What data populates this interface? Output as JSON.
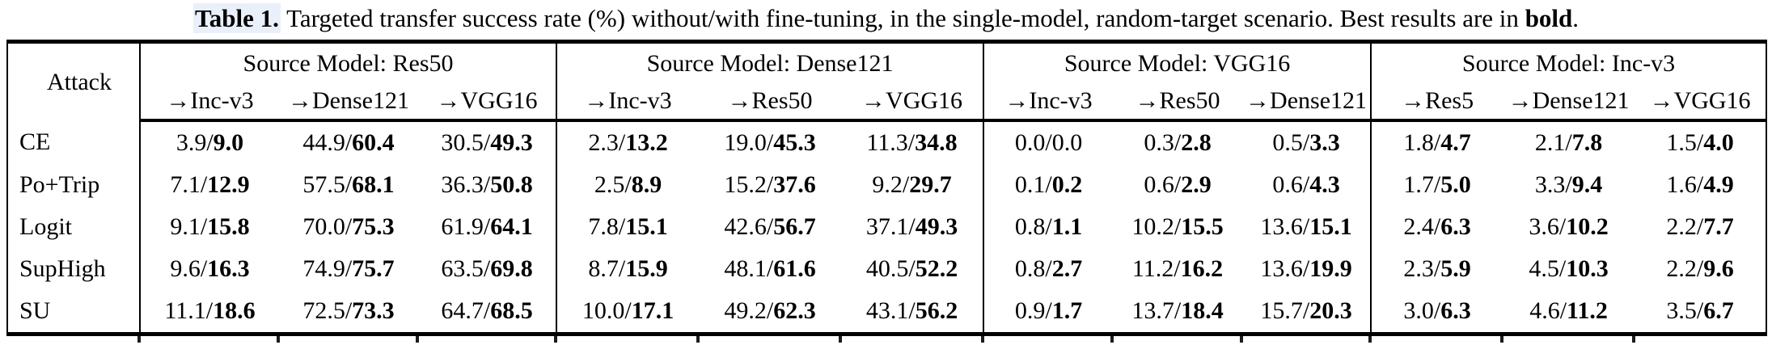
{
  "caption": {
    "label": "Table 1.",
    "body": " Targeted transfer success rate (%) without/with fine-tuning, in the single-model, random-target scenario. Best results are in ",
    "bold_word": "bold",
    "suffix": "."
  },
  "table": {
    "attack_header": "Attack",
    "groups": [
      {
        "title": "Source Model: Res50",
        "columns": [
          "→Inc-v3",
          "→Dense121",
          "→VGG16"
        ]
      },
      {
        "title": "Source Model: Dense121",
        "columns": [
          "→Inc-v3",
          "→Res50",
          "→VGG16"
        ]
      },
      {
        "title": "Source Model: VGG16",
        "columns": [
          "→Inc-v3",
          "→Res50",
          "→Dense121"
        ]
      },
      {
        "title": "Source Model: Inc-v3",
        "columns": [
          "→Res5",
          "→Dense121",
          "→VGG16"
        ]
      }
    ],
    "value_format": "without/with, 'with' value bold when best",
    "rows": [
      {
        "attack": "CE",
        "cells": [
          [
            "3.9",
            "9.0",
            true
          ],
          [
            "44.9",
            "60.4",
            true
          ],
          [
            "30.5",
            "49.3",
            true
          ],
          [
            "2.3",
            "13.2",
            true
          ],
          [
            "19.0",
            "45.3",
            true
          ],
          [
            "11.3",
            "34.8",
            true
          ],
          [
            "0.0",
            "0.0",
            false
          ],
          [
            "0.3",
            "2.8",
            true
          ],
          [
            "0.5",
            "3.3",
            true
          ],
          [
            "1.8",
            "4.7",
            true
          ],
          [
            "2.1",
            "7.8",
            true
          ],
          [
            "1.5",
            "4.0",
            true
          ]
        ]
      },
      {
        "attack": "Po+Trip",
        "cells": [
          [
            "7.1",
            "12.9",
            true
          ],
          [
            "57.5",
            "68.1",
            true
          ],
          [
            "36.3",
            "50.8",
            true
          ],
          [
            "2.5",
            "8.9",
            true
          ],
          [
            "15.2",
            "37.6",
            true
          ],
          [
            "9.2",
            "29.7",
            true
          ],
          [
            "0.1",
            "0.2",
            true
          ],
          [
            "0.6",
            "2.9",
            true
          ],
          [
            "0.6",
            "4.3",
            true
          ],
          [
            "1.7",
            "5.0",
            true
          ],
          [
            "3.3",
            "9.4",
            true
          ],
          [
            "1.6",
            "4.9",
            true
          ]
        ]
      },
      {
        "attack": "Logit",
        "cells": [
          [
            "9.1",
            "15.8",
            true
          ],
          [
            "70.0",
            "75.3",
            true
          ],
          [
            "61.9",
            "64.1",
            true
          ],
          [
            "7.8",
            "15.1",
            true
          ],
          [
            "42.6",
            "56.7",
            true
          ],
          [
            "37.1",
            "49.3",
            true
          ],
          [
            "0.8",
            "1.1",
            true
          ],
          [
            "10.2",
            "15.5",
            true
          ],
          [
            "13.6",
            "15.1",
            true
          ],
          [
            "2.4",
            "6.3",
            true
          ],
          [
            "3.6",
            "10.2",
            true
          ],
          [
            "2.2",
            "7.7",
            true
          ]
        ]
      },
      {
        "attack": "SupHigh",
        "cells": [
          [
            "9.6",
            "16.3",
            true
          ],
          [
            "74.9",
            "75.7",
            true
          ],
          [
            "63.5",
            "69.8",
            true
          ],
          [
            "8.7",
            "15.9",
            true
          ],
          [
            "48.1",
            "61.6",
            true
          ],
          [
            "40.5",
            "52.2",
            true
          ],
          [
            "0.8",
            "2.7",
            true
          ],
          [
            "11.2",
            "16.2",
            true
          ],
          [
            "13.6",
            "19.9",
            true
          ],
          [
            "2.3",
            "5.9",
            true
          ],
          [
            "4.5",
            "10.3",
            true
          ],
          [
            "2.2",
            "9.6",
            true
          ]
        ]
      },
      {
        "attack": "SU",
        "cells": [
          [
            "11.1",
            "18.6",
            true
          ],
          [
            "72.5",
            "73.3",
            true
          ],
          [
            "64.7",
            "68.5",
            true
          ],
          [
            "10.0",
            "17.1",
            true
          ],
          [
            "49.2",
            "62.3",
            true
          ],
          [
            "43.1",
            "56.2",
            true
          ],
          [
            "0.9",
            "1.7",
            true
          ],
          [
            "13.7",
            "18.4",
            true
          ],
          [
            "15.7",
            "20.3",
            true
          ],
          [
            "3.0",
            "6.3",
            true
          ],
          [
            "4.6",
            "11.2",
            true
          ],
          [
            "3.5",
            "6.7",
            true
          ]
        ]
      }
    ]
  }
}
